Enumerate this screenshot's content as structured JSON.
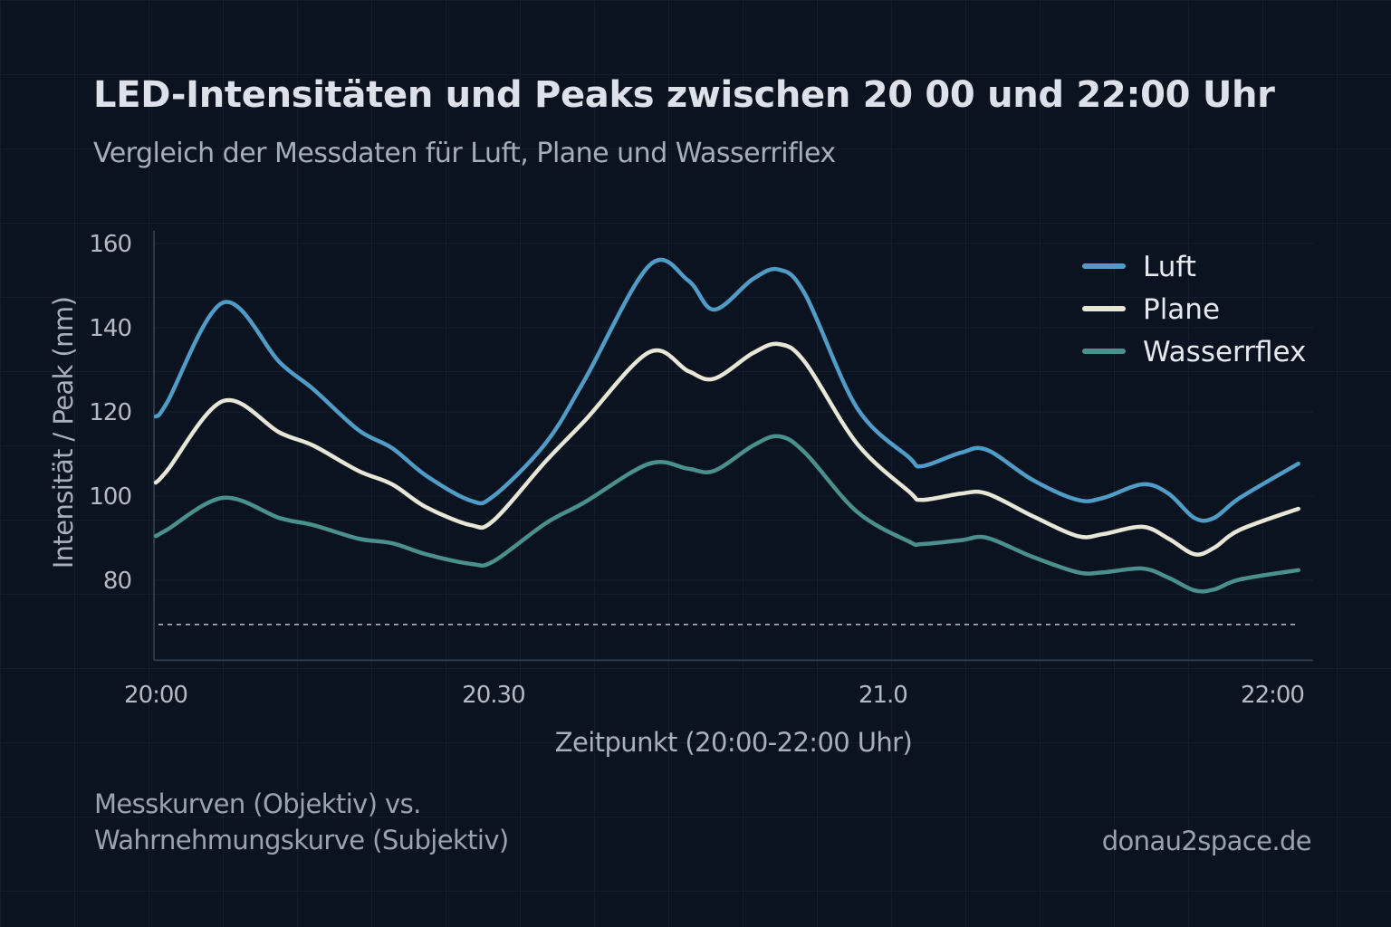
{
  "header": {
    "title": "LED-Intensitäten und Peaks zwischen 20 00 und 22:00 Uhr",
    "subtitle": "Vergleich der Messdaten für Luft, Plane und Wasserriflex"
  },
  "footer": {
    "note_line1": "Messkurven (Objektiv) vs.",
    "note_line2": "Wahrnehmungskurve (Subjektiv)",
    "source": "donau2space.de"
  },
  "chart_data": {
    "type": "line",
    "title": "LED-Intensitäten und Peaks zwischen 20 00 und 22:00 Uhr",
    "subtitle": "Vergleich der Messdaten für Luft, Plane und Wasserriflex",
    "xlabel": "Zeitpunkt (20:00-22:00 Uhr)",
    "ylabel": "Intensität / Peak (nm)",
    "x_ticks": [
      {
        "label": "20:00",
        "at": "20:00"
      },
      {
        "label": "20.30",
        "at": "20:30"
      },
      {
        "label": "21.0",
        "at": "21:00"
      },
      {
        "label": "22:00",
        "at": "22:00"
      }
    ],
    "y_ticks": [
      80,
      100,
      120,
      140,
      160
    ],
    "ylim": [
      61,
      163
    ],
    "xlim": [
      "20:00",
      "22:04"
    ],
    "grid": true,
    "legend_position": "top-right",
    "reference_line": {
      "y": 69.5,
      "style": "dashed"
    },
    "x": [
      "20:00",
      "20:01",
      "20:06",
      "20:11",
      "20:14",
      "20:18",
      "20:21",
      "20:24",
      "20:28",
      "20:30",
      "20:34",
      "20:37",
      "20:42",
      "20:45",
      "20:47",
      "20:50",
      "20:52",
      "20:54",
      "20:58",
      "21:04",
      "21:06",
      "21:12",
      "21:16",
      "21:23",
      "21:30",
      "21:34",
      "21:40",
      "21:44",
      "21:48",
      "21:51",
      "21:55",
      "22:04"
    ],
    "series": [
      {
        "name": "Luft",
        "color": "#4f9cc6",
        "values": [
          118.9,
          122.2,
          146.0,
          131.8,
          125.4,
          115.7,
          111.4,
          104.9,
          98.9,
          100.0,
          112.5,
          127.5,
          154.8,
          151.2,
          144.3,
          151.6,
          153.8,
          148.0,
          121.0,
          109.2,
          107.1,
          110.3,
          111.0,
          103.9,
          99.1,
          99.6,
          102.8,
          100.6,
          94.8,
          94.8,
          99.6,
          107.7
        ]
      },
      {
        "name": "Plane",
        "color": "#e8e6d6",
        "values": [
          103.2,
          106.0,
          122.6,
          115.1,
          112.0,
          106.0,
          102.8,
          97.4,
          93.1,
          94.2,
          108.2,
          117.8,
          134.2,
          129.7,
          127.9,
          134.0,
          136.1,
          131.8,
          112.5,
          101.1,
          99.1,
          100.6,
          100.6,
          95.3,
          90.5,
          91.0,
          92.7,
          89.9,
          86.2,
          87.7,
          92.0,
          97.0
        ]
      },
      {
        "name": "Wasserrflex",
        "color": "#4a908d",
        "values": [
          90.5,
          92.0,
          99.6,
          94.8,
          93.1,
          89.9,
          88.8,
          86.2,
          83.9,
          84.5,
          93.5,
          98.5,
          107.7,
          106.5,
          106.0,
          112.0,
          114.2,
          110.3,
          96.3,
          89.2,
          88.6,
          89.5,
          90.1,
          85.6,
          81.9,
          81.9,
          82.8,
          80.6,
          77.6,
          77.8,
          80.2,
          82.4
        ]
      }
    ]
  }
}
